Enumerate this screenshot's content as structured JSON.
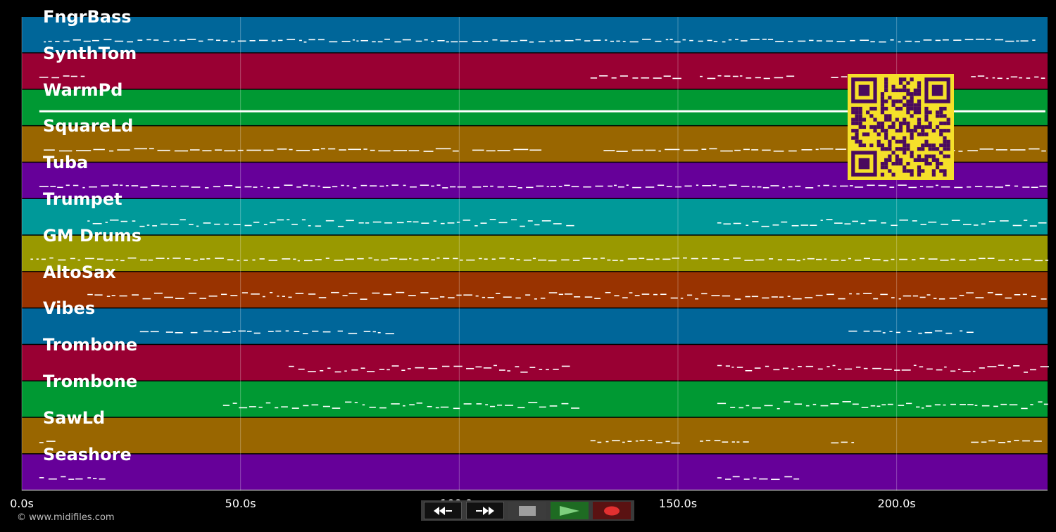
{
  "tracks": [
    {
      "name": "FngrBass",
      "color": "#006699"
    },
    {
      "name": "SynthTom",
      "color": "#990033"
    },
    {
      "name": "WarmPd",
      "color": "#009933"
    },
    {
      "name": "SquareLd",
      "color": "#996600"
    },
    {
      "name": "Tuba",
      "color": "#660099"
    },
    {
      "name": "Trumpet",
      "color": "#009999"
    },
    {
      "name": "GM Drums",
      "color": "#999900"
    },
    {
      "name": "AltoSax",
      "color": "#993300"
    },
    {
      "name": "Vibes",
      "color": "#006699"
    },
    {
      "name": "Trombone",
      "color": "#990033"
    },
    {
      "name": "Trombone",
      "color": "#009933"
    },
    {
      "name": "SawLd",
      "color": "#996600"
    },
    {
      "name": "Seashore",
      "color": "#660099"
    }
  ],
  "timeline": {
    "ticks": [
      "0.0s",
      "50.0s",
      "100.0s",
      "150.0s",
      "200.0s"
    ],
    "tick_seconds": [
      0,
      50,
      100,
      150,
      200
    ],
    "end_seconds": 234.5
  },
  "transport": {
    "rewind_icon": "rewind-icon",
    "forward_icon": "fast-forward-icon",
    "stop_icon": "stop-icon",
    "play_icon": "play-icon",
    "record_icon": "record-icon"
  },
  "copyright": "© www.midifiles.com",
  "qr_code": {
    "icon": "qr-code-icon",
    "bg": "#f5e02a",
    "fg": "#4a0a5e"
  }
}
